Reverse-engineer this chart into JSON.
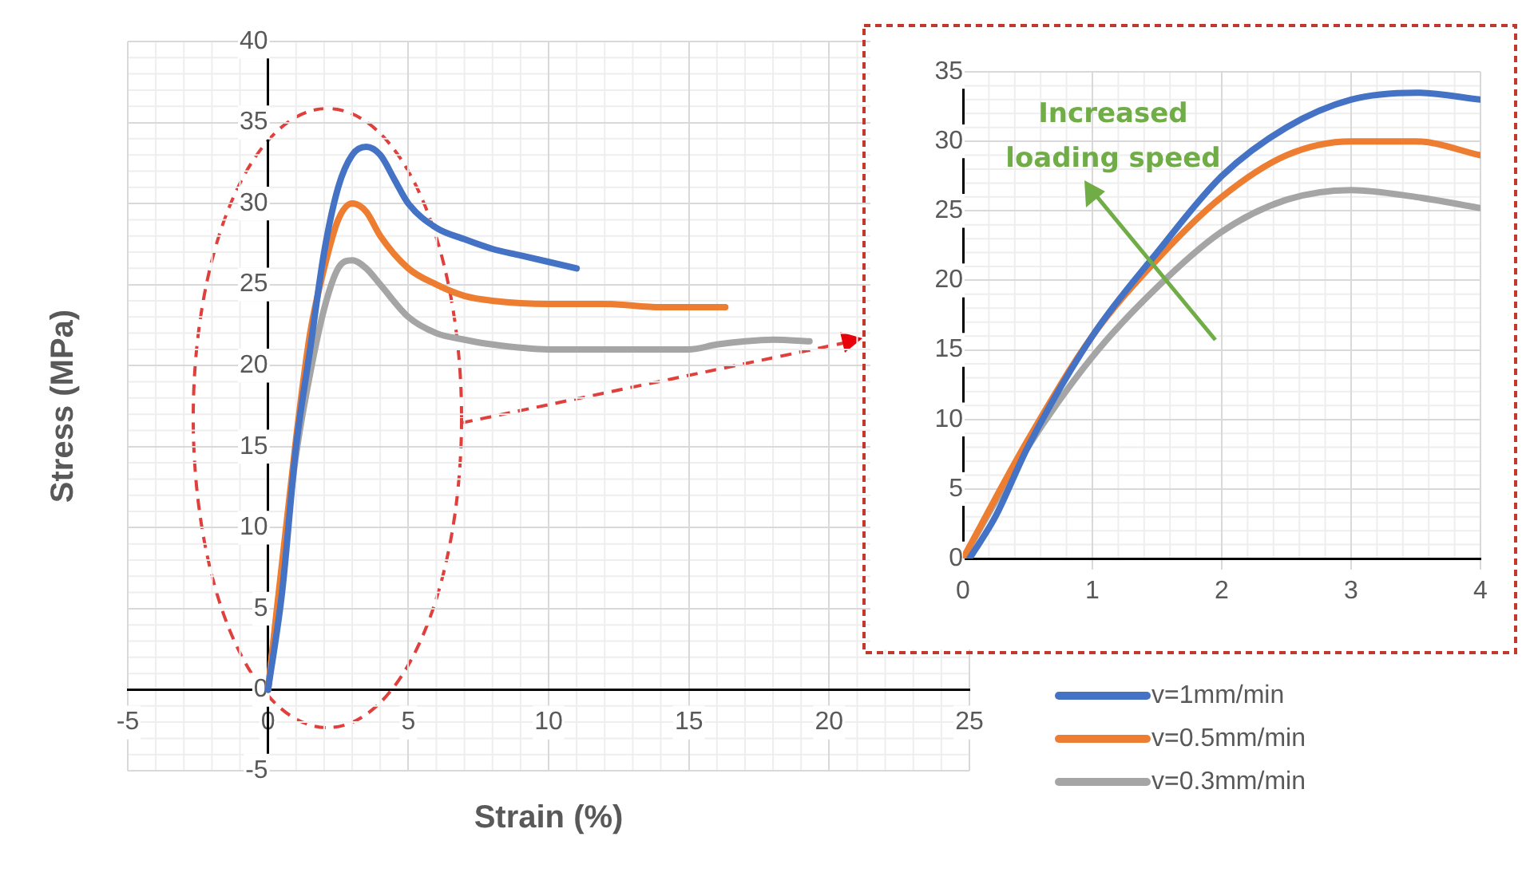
{
  "chart_data": [
    {
      "type": "line",
      "xlabel": "Strain (%)",
      "ylabel": "Stress (MPa)",
      "xlim": [
        -5,
        25
      ],
      "ylim": [
        -5,
        40
      ],
      "xticks": [
        -5,
        0,
        5,
        10,
        15,
        20,
        25
      ],
      "yticks": [
        -5,
        0,
        5,
        10,
        15,
        20,
        25,
        30,
        35,
        40
      ],
      "grid": true,
      "legend": "bottom right",
      "marker": "none",
      "line_style": "solid",
      "series": [
        {
          "name": "v=1mm/min",
          "color": "#4472c4",
          "x": [
            0,
            0.5,
            1,
            1.5,
            2,
            2.5,
            3,
            3.5,
            4,
            4.5,
            5,
            6,
            7,
            8,
            9,
            10,
            11
          ],
          "values": [
            0,
            6,
            15,
            21,
            27,
            31,
            33,
            33.5,
            33,
            31.5,
            30,
            28.5,
            27.8,
            27.2,
            26.8,
            26.4,
            26
          ]
        },
        {
          "name": "v=0.5mm/min",
          "color": "#ed7d31",
          "x": [
            0,
            1,
            1.5,
            2,
            2.5,
            3,
            3.5,
            4,
            5,
            6,
            7,
            8,
            10,
            12,
            14,
            16.3
          ],
          "values": [
            0,
            15.5,
            22,
            26,
            29,
            30,
            29.5,
            28,
            26,
            25,
            24.3,
            24,
            23.8,
            23.8,
            23.6,
            23.6
          ]
        },
        {
          "name": "v=0.3mm/min",
          "color": "#a5a5a5",
          "x": [
            0,
            1,
            1.5,
            2,
            2.5,
            3,
            3.5,
            4,
            5,
            6,
            7,
            8,
            10,
            12,
            14,
            15,
            16,
            17,
            18,
            19.3
          ],
          "values": [
            0,
            14.5,
            19.5,
            23.5,
            26,
            26.5,
            26,
            25,
            23,
            22,
            21.6,
            21.3,
            21,
            21,
            21,
            21,
            21.3,
            21.5,
            21.6,
            21.5
          ]
        }
      ]
    },
    {
      "type": "line",
      "xlim": [
        0,
        4
      ],
      "ylim": [
        0,
        35
      ],
      "xticks": [
        0,
        1,
        2,
        3,
        4
      ],
      "yticks": [
        0,
        5,
        10,
        15,
        20,
        25,
        30,
        35
      ],
      "grid": true,
      "marker": "none",
      "line_style": "solid",
      "annotations": [
        "Increased loading speed"
      ],
      "series": [
        {
          "color": "#4472c4",
          "x": [
            0.05,
            0.25,
            0.5,
            1,
            1.5,
            2,
            2.5,
            3,
            3.5,
            4
          ],
          "values": [
            0,
            3,
            8,
            16,
            22,
            27.5,
            31,
            33,
            33.5,
            33
          ]
        },
        {
          "color": "#ed7d31",
          "x": [
            0,
            0.5,
            1,
            1.5,
            2,
            2.5,
            3,
            3.5,
            4
          ],
          "values": [
            0,
            8.5,
            16,
            21.5,
            26,
            29,
            30,
            30,
            29
          ]
        },
        {
          "color": "#a5a5a5",
          "x": [
            0,
            0.5,
            1,
            1.5,
            2,
            2.5,
            3,
            3.5,
            4
          ],
          "values": [
            0,
            8,
            14.5,
            19.5,
            23.5,
            25.8,
            26.5,
            26,
            25.2
          ]
        }
      ]
    }
  ]
}
